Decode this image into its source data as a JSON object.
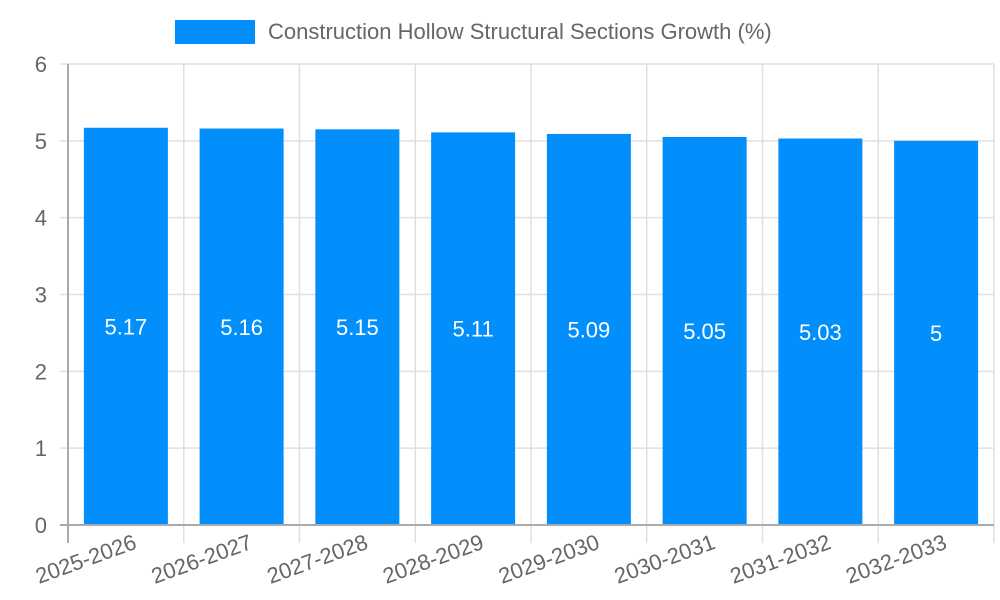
{
  "chart_data": {
    "type": "bar",
    "title": "",
    "xlabel": "",
    "ylabel": "",
    "categories": [
      "2025-2026",
      "2026-2027",
      "2027-2028",
      "2028-2029",
      "2029-2030",
      "2030-2031",
      "2031-2032",
      "2032-2033"
    ],
    "series": [
      {
        "name": "Construction Hollow Structural Sections Growth (%)",
        "values": [
          5.17,
          5.16,
          5.15,
          5.11,
          5.09,
          5.05,
          5.03,
          5
        ],
        "color": "#038ffb"
      }
    ],
    "ylim": [
      0,
      6
    ],
    "yticks": [
      0,
      1,
      2,
      3,
      4,
      5,
      6
    ],
    "grid": true,
    "legend_position": "top",
    "data_labels": [
      "5.17",
      "5.16",
      "5.15",
      "5.11",
      "5.09",
      "5.05",
      "5.03",
      "5"
    ]
  },
  "legend": {
    "label": "Construction Hollow Structural Sections Growth (%)",
    "color": "#038ffb"
  },
  "colors": {
    "bar": "#038ffb",
    "grid": "#e0e0e0",
    "axis": "#aaaaaa",
    "tick_text": "#666666",
    "label_text": "#ffffff"
  }
}
